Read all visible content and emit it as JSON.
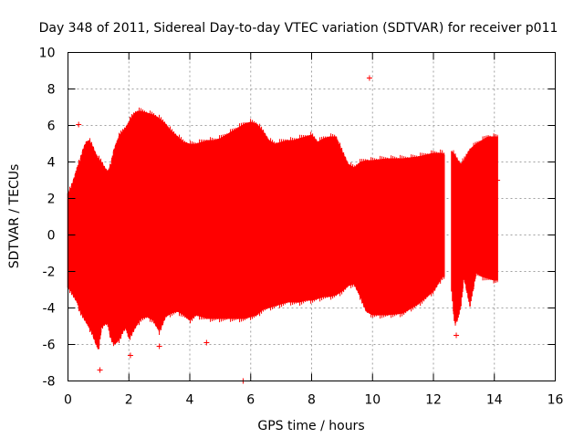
{
  "chart_data": {
    "type": "scatter",
    "title": "Day 348 of 2011, Sidereal Day-to-day VTEC variation (SDTVAR) for receiver p011",
    "xlabel": "GPS time / hours",
    "ylabel": "SDTVAR / TECUs",
    "xlim": [
      0,
      16
    ],
    "ylim": [
      -8,
      10
    ],
    "xticks": [
      "0",
      "2",
      "4",
      "6",
      "8",
      "10",
      "12",
      "14",
      "16"
    ],
    "yticks": [
      "-8",
      "-6",
      "-4",
      "-2",
      "0",
      "2",
      "4",
      "6",
      "8",
      "10"
    ],
    "grid": true,
    "marker": "+",
    "color": "#ff0000",
    "series": [
      {
        "name": "SDTVAR",
        "upper_envelope": {
          "x": [
            0.0,
            0.1,
            0.2,
            0.3,
            0.4,
            0.5,
            0.6,
            0.7,
            0.8,
            0.9,
            1.0,
            1.1,
            1.2,
            1.3,
            1.4,
            1.5,
            1.6,
            1.7,
            1.8,
            1.9,
            2.0,
            2.1,
            2.2,
            2.3,
            2.4,
            2.6,
            2.8,
            3.0,
            3.2,
            3.4,
            3.6,
            3.8,
            4.0,
            4.2,
            4.4,
            4.6,
            4.8,
            5.0,
            5.2,
            5.4,
            5.6,
            5.8,
            6.0,
            6.2,
            6.4,
            6.6,
            6.8,
            7.0,
            7.2,
            7.4,
            7.6,
            7.8,
            8.0,
            8.2,
            8.4,
            8.6,
            8.8,
            9.0,
            9.2,
            9.4,
            9.6,
            9.8,
            10.0,
            10.5,
            11.0,
            11.5,
            12.0,
            12.3,
            12.35
          ],
          "y": [
            2.2,
            2.5,
            3.0,
            3.6,
            4.0,
            4.6,
            5.0,
            5.1,
            4.8,
            4.4,
            4.1,
            3.9,
            3.6,
            3.4,
            3.7,
            4.5,
            5.0,
            5.4,
            5.6,
            5.8,
            6.1,
            6.4,
            6.6,
            6.7,
            6.7,
            6.6,
            6.5,
            6.3,
            6.0,
            5.6,
            5.3,
            5.0,
            4.9,
            4.9,
            5.0,
            5.1,
            5.1,
            5.2,
            5.4,
            5.6,
            5.8,
            6.0,
            6.1,
            6.0,
            5.6,
            5.1,
            4.9,
            5.0,
            5.1,
            5.1,
            5.2,
            5.3,
            5.4,
            5.0,
            5.2,
            5.3,
            5.3,
            4.5,
            3.8,
            3.6,
            3.9,
            4.0,
            4.0,
            4.1,
            4.1,
            4.2,
            4.4,
            4.4,
            4.3
          ]
        },
        "lower_envelope": {
          "x": [
            0.0,
            0.1,
            0.2,
            0.3,
            0.4,
            0.5,
            0.6,
            0.7,
            0.8,
            0.9,
            1.0,
            1.1,
            1.2,
            1.3,
            1.4,
            1.5,
            1.6,
            1.7,
            1.8,
            1.9,
            2.0,
            2.2,
            2.4,
            2.6,
            2.8,
            3.0,
            3.2,
            3.4,
            3.6,
            3.8,
            4.0,
            4.2,
            4.4,
            4.6,
            4.8,
            5.0,
            5.2,
            5.4,
            5.6,
            5.8,
            6.0,
            6.2,
            6.4,
            6.6,
            6.8,
            7.0,
            7.2,
            7.4,
            7.6,
            7.8,
            8.0,
            8.2,
            8.4,
            8.6,
            8.8,
            9.0,
            9.2,
            9.4,
            9.6,
            9.8,
            10.0,
            10.5,
            11.0,
            11.5,
            12.0,
            12.3,
            12.35
          ],
          "y": [
            -2.8,
            -3.0,
            -3.3,
            -3.6,
            -4.1,
            -4.4,
            -4.7,
            -5.0,
            -5.3,
            -5.8,
            -6.2,
            -5.0,
            -4.8,
            -4.8,
            -5.5,
            -5.9,
            -5.8,
            -5.6,
            -5.2,
            -5.0,
            -5.6,
            -5.0,
            -4.5,
            -4.4,
            -4.6,
            -5.2,
            -4.4,
            -4.2,
            -4.1,
            -4.3,
            -4.6,
            -4.3,
            -4.4,
            -4.5,
            -4.5,
            -4.5,
            -4.5,
            -4.5,
            -4.5,
            -4.5,
            -4.4,
            -4.3,
            -4.0,
            -3.9,
            -3.8,
            -3.7,
            -3.6,
            -3.6,
            -3.6,
            -3.5,
            -3.5,
            -3.4,
            -3.3,
            -3.3,
            -3.2,
            -3.0,
            -2.7,
            -2.6,
            -3.3,
            -4.1,
            -4.3,
            -4.3,
            -4.2,
            -3.7,
            -3.0,
            -2.2,
            -2.2
          ]
        },
        "segment_2_upper": {
          "x": [
            12.6,
            12.7,
            12.8,
            12.9,
            13.0,
            13.2,
            13.4,
            13.6,
            13.8,
            14.0,
            14.1
          ],
          "y": [
            4.5,
            4.3,
            4.0,
            3.8,
            4.0,
            4.6,
            4.9,
            5.1,
            5.3,
            5.3,
            5.3
          ]
        },
        "segment_2_lower": {
          "x": [
            12.6,
            12.7,
            12.8,
            12.9,
            13.0,
            13.2,
            13.4,
            13.6,
            13.8,
            14.0,
            14.1
          ],
          "y": [
            -3.0,
            -4.8,
            -4.5,
            -3.8,
            -2.2,
            -3.8,
            -2.0,
            -2.2,
            -2.3,
            -2.4,
            -2.4
          ]
        },
        "outliers": [
          {
            "x": 9.9,
            "y": 8.6
          },
          {
            "x": 0.35,
            "y": 6.05
          },
          {
            "x": 5.75,
            "y": -8.0
          },
          {
            "x": 1.05,
            "y": -7.4
          },
          {
            "x": 2.05,
            "y": -6.6
          },
          {
            "x": 3.0,
            "y": -6.1
          },
          {
            "x": 4.55,
            "y": -5.9
          },
          {
            "x": 12.75,
            "y": -5.5
          },
          {
            "x": 14.1,
            "y": 3.0
          }
        ]
      }
    ]
  }
}
